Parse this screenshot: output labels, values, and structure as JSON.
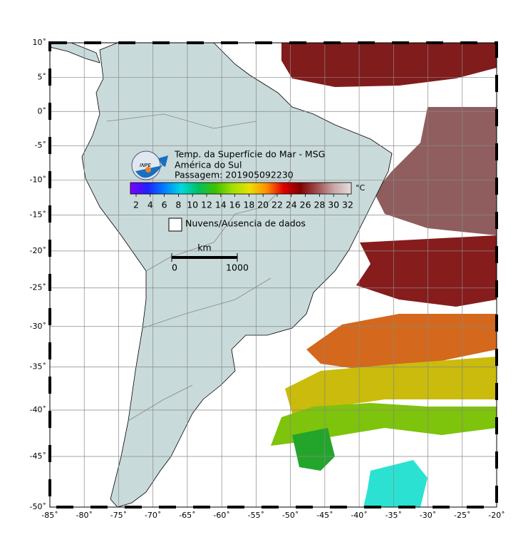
{
  "map": {
    "title": "Temp. da Superfície do Mar - MSG",
    "subtitle": "América do Sul",
    "pass": "Passagem: 201905092230",
    "logo": "INPE",
    "lon_ticks": [
      {
        "value": -85,
        "label": "-85˚"
      },
      {
        "value": -80,
        "label": "-80˚"
      },
      {
        "value": -75,
        "label": "-75˚"
      },
      {
        "value": -70,
        "label": "-70˚"
      },
      {
        "value": -65,
        "label": "-65˚"
      },
      {
        "value": -60,
        "label": "-60˚"
      },
      {
        "value": -55,
        "label": "-55˚"
      },
      {
        "value": -50,
        "label": "-50˚"
      },
      {
        "value": -45,
        "label": "-45˚"
      },
      {
        "value": -40,
        "label": "-40˚"
      },
      {
        "value": -35,
        "label": "-35˚"
      },
      {
        "value": -30,
        "label": "-30˚"
      },
      {
        "value": -25,
        "label": "-25˚"
      },
      {
        "value": -20,
        "label": "-20˚"
      }
    ],
    "lat_ticks": [
      {
        "value": 10,
        "label": "10˚"
      },
      {
        "value": 5,
        "label": "5˚"
      },
      {
        "value": 0,
        "label": "0˚"
      },
      {
        "value": -5,
        "label": "-5˚"
      },
      {
        "value": -10,
        "label": "-10˚"
      },
      {
        "value": -15,
        "label": "-15˚"
      },
      {
        "value": -20,
        "label": "-20˚"
      },
      {
        "value": -25,
        "label": "-25˚"
      },
      {
        "value": -30,
        "label": "-30˚"
      },
      {
        "value": -35,
        "label": "-35˚"
      },
      {
        "value": -40,
        "label": "-40˚"
      },
      {
        "value": -45,
        "label": "-45˚"
      },
      {
        "value": -50,
        "label": "-50˚"
      }
    ],
    "colorbar": {
      "unit": "°C",
      "ticks": [
        2,
        4,
        6,
        8,
        10,
        12,
        14,
        16,
        18,
        20,
        22,
        24,
        26,
        28,
        30,
        32
      ],
      "colors": [
        "#8000ff",
        "#2020ff",
        "#0080ff",
        "#00d8e0",
        "#00c060",
        "#40c000",
        "#a0e000",
        "#e8e000",
        "#ff9000",
        "#e00000",
        "#800000",
        "#a05050",
        "#c8a8a8",
        "#e8dcdc"
      ]
    },
    "legend": "Nuvens/Ausencia de dados",
    "scale_bar": {
      "unit": "km",
      "ticks": [
        0,
        1000
      ]
    }
  }
}
